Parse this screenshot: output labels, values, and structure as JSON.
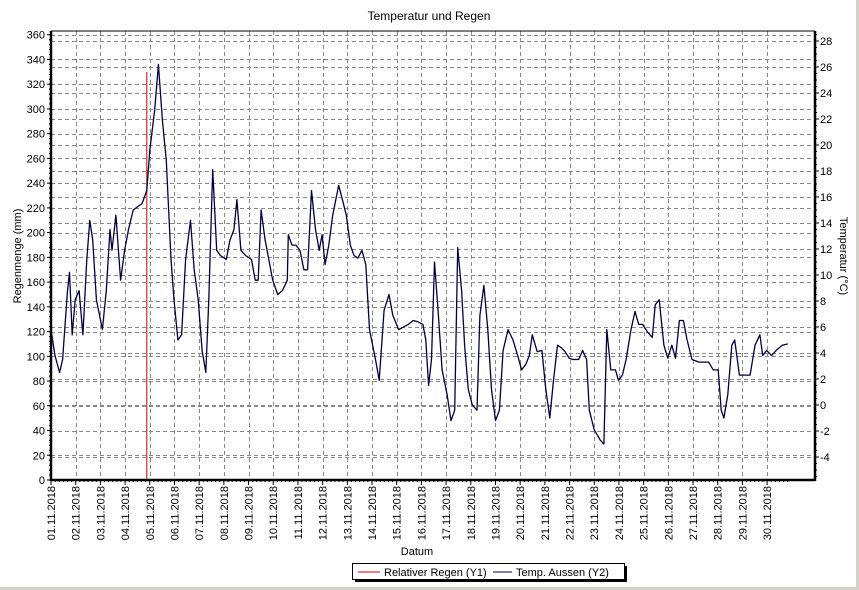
{
  "chart_data": {
    "type": "line",
    "title": "Temperatur und Regen",
    "xlabel": "Datum",
    "ylabel": "Regenmenge (mm)",
    "y2label": "Temperatur (°C)",
    "x_unit": "days since 01.11.2018 00:00",
    "xlim": [
      0,
      30.94
    ],
    "ylim": [
      0,
      363
    ],
    "y2lim": [
      -5.77,
      28.77
    ],
    "grid": true,
    "legend_position": "bottom-center",
    "x_tick_labels": [
      "01.11.2018",
      "02.11.2018",
      "03.11.2018",
      "04.11.2018",
      "05.11.2018",
      "06.11.2018",
      "07.11.2018",
      "08.11.2018",
      "09.11.2018",
      "10.11.2018",
      "11.11.2018",
      "12.11.2018",
      "13.11.2018",
      "14.11.2018",
      "15.11.2018",
      "16.11.2018",
      "17.11.2018",
      "18.11.2018",
      "19.11.2018",
      "20.11.2018",
      "21.11.2018",
      "22.11.2018",
      "23.11.2018",
      "24.11.2018",
      "25.11.2018",
      "26.11.2018",
      "27.11.2018",
      "28.11.2018",
      "29.11.2018",
      "30.11.2018"
    ],
    "y_ticks": [
      0,
      20,
      40,
      60,
      80,
      100,
      120,
      140,
      160,
      180,
      200,
      220,
      240,
      260,
      280,
      300,
      320,
      340,
      360
    ],
    "y2_ticks": [
      -4,
      -2,
      0,
      2,
      4,
      6,
      8,
      10,
      12,
      14,
      16,
      18,
      20,
      22,
      24,
      26,
      28
    ],
    "series": [
      {
        "name": "Relativer Regen (Y1)",
        "axis": "y1",
        "color": "#cc0000",
        "style": "impulse",
        "points": [
          [
            3.88,
            330
          ]
        ]
      },
      {
        "name": "Temp. Aussen (Y2)",
        "axis": "y2",
        "color": "#000040",
        "style": "line",
        "points": [
          [
            0,
            5.8
          ],
          [
            0.16,
            3.8
          ],
          [
            0.35,
            2.5
          ],
          [
            0.47,
            3.5
          ],
          [
            0.67,
            8.8
          ],
          [
            0.75,
            10.2
          ],
          [
            0.86,
            5.4
          ],
          [
            0.98,
            8.1
          ],
          [
            1.14,
            8.8
          ],
          [
            1.29,
            5.4
          ],
          [
            1.45,
            11.2
          ],
          [
            1.57,
            14.2
          ],
          [
            1.69,
            12.7
          ],
          [
            1.84,
            8.1
          ],
          [
            2.08,
            5.8
          ],
          [
            2.24,
            8.8
          ],
          [
            2.39,
            13.5
          ],
          [
            2.47,
            11.9
          ],
          [
            2.63,
            14.6
          ],
          [
            2.82,
            9.6
          ],
          [
            2.98,
            11.9
          ],
          [
            3.14,
            13.5
          ],
          [
            3.33,
            15.0
          ],
          [
            3.69,
            15.5
          ],
          [
            3.88,
            16.5
          ],
          [
            4.0,
            19.6
          ],
          [
            4.2,
            22.7
          ],
          [
            4.35,
            26.2
          ],
          [
            4.51,
            21.9
          ],
          [
            4.67,
            18.8
          ],
          [
            4.86,
            11.2
          ],
          [
            4.98,
            8.1
          ],
          [
            5.14,
            5.0
          ],
          [
            5.29,
            5.4
          ],
          [
            5.45,
            11.2
          ],
          [
            5.65,
            14.2
          ],
          [
            5.8,
            10.4
          ],
          [
            5.96,
            8.1
          ],
          [
            6.12,
            4.2
          ],
          [
            6.27,
            2.5
          ],
          [
            6.39,
            8.1
          ],
          [
            6.55,
            18.1
          ],
          [
            6.71,
            11.9
          ],
          [
            6.86,
            11.5
          ],
          [
            7.1,
            11.2
          ],
          [
            7.25,
            12.7
          ],
          [
            7.41,
            13.5
          ],
          [
            7.53,
            15.8
          ],
          [
            7.69,
            11.9
          ],
          [
            7.88,
            11.5
          ],
          [
            8.12,
            11.2
          ],
          [
            8.27,
            9.6
          ],
          [
            8.39,
            9.6
          ],
          [
            8.51,
            15.0
          ],
          [
            8.67,
            12.7
          ],
          [
            8.82,
            11.2
          ],
          [
            8.98,
            9.6
          ],
          [
            9.18,
            8.5
          ],
          [
            9.37,
            8.8
          ],
          [
            9.57,
            9.6
          ],
          [
            9.61,
            13.1
          ],
          [
            9.76,
            12.3
          ],
          [
            9.92,
            12.3
          ],
          [
            10.08,
            11.9
          ],
          [
            10.24,
            10.4
          ],
          [
            10.39,
            10.4
          ],
          [
            10.55,
            16.5
          ],
          [
            10.71,
            13.5
          ],
          [
            10.86,
            11.9
          ],
          [
            10.98,
            13.1
          ],
          [
            11.1,
            10.8
          ],
          [
            11.25,
            12.3
          ],
          [
            11.41,
            14.6
          ],
          [
            11.65,
            16.9
          ],
          [
            11.8,
            15.8
          ],
          [
            11.96,
            14.6
          ],
          [
            12.12,
            12.3
          ],
          [
            12.27,
            11.5
          ],
          [
            12.43,
            11.3
          ],
          [
            12.59,
            11.9
          ],
          [
            12.75,
            10.8
          ],
          [
            12.9,
            5.8
          ],
          [
            13.14,
            3.5
          ],
          [
            13.29,
            1.9
          ],
          [
            13.49,
            7.3
          ],
          [
            13.69,
            8.5
          ],
          [
            13.84,
            6.9
          ],
          [
            14.08,
            5.8
          ],
          [
            14.47,
            6.2
          ],
          [
            14.67,
            6.5
          ],
          [
            14.86,
            6.4
          ],
          [
            15.06,
            6.2
          ],
          [
            15.18,
            5.0
          ],
          [
            15.29,
            1.5
          ],
          [
            15.41,
            3.5
          ],
          [
            15.53,
            11.0
          ],
          [
            15.69,
            6.9
          ],
          [
            15.84,
            2.7
          ],
          [
            16.04,
            0.8
          ],
          [
            16.2,
            -1.2
          ],
          [
            16.35,
            -0.4
          ],
          [
            16.47,
            12.1
          ],
          [
            16.63,
            8.8
          ],
          [
            16.75,
            4.6
          ],
          [
            16.9,
            1.2
          ],
          [
            17.06,
            0.0
          ],
          [
            17.25,
            -0.4
          ],
          [
            17.37,
            6.9
          ],
          [
            17.53,
            9.2
          ],
          [
            17.69,
            5.8
          ],
          [
            17.84,
            1.2
          ],
          [
            18.0,
            -1.2
          ],
          [
            18.16,
            -0.4
          ],
          [
            18.31,
            4.2
          ],
          [
            18.51,
            5.8
          ],
          [
            18.71,
            5.0
          ],
          [
            18.9,
            3.8
          ],
          [
            19.06,
            2.7
          ],
          [
            19.22,
            3.1
          ],
          [
            19.37,
            3.8
          ],
          [
            19.49,
            5.4
          ],
          [
            19.69,
            4.1
          ],
          [
            19.88,
            4.2
          ],
          [
            20.04,
            1.2
          ],
          [
            20.2,
            -1.0
          ],
          [
            20.35,
            1.9
          ],
          [
            20.51,
            4.6
          ],
          [
            20.67,
            4.4
          ],
          [
            20.82,
            4.1
          ],
          [
            20.98,
            3.6
          ],
          [
            21.14,
            3.5
          ],
          [
            21.37,
            3.5
          ],
          [
            21.53,
            4.2
          ],
          [
            21.69,
            3.5
          ],
          [
            21.8,
            -0.4
          ],
          [
            22.0,
            -1.9
          ],
          [
            22.24,
            -2.7
          ],
          [
            22.39,
            -3.0
          ],
          [
            22.51,
            5.8
          ],
          [
            22.67,
            2.7
          ],
          [
            22.86,
            2.7
          ],
          [
            22.98,
            1.9
          ],
          [
            23.14,
            2.3
          ],
          [
            23.29,
            3.5
          ],
          [
            23.49,
            5.8
          ],
          [
            23.65,
            7.2
          ],
          [
            23.8,
            6.2
          ],
          [
            23.96,
            6.2
          ],
          [
            24.16,
            5.6
          ],
          [
            24.35,
            5.2
          ],
          [
            24.47,
            7.7
          ],
          [
            24.63,
            8.1
          ],
          [
            24.82,
            4.6
          ],
          [
            24.98,
            3.6
          ],
          [
            25.14,
            4.6
          ],
          [
            25.29,
            3.6
          ],
          [
            25.45,
            6.5
          ],
          [
            25.61,
            6.5
          ],
          [
            25.76,
            5.0
          ],
          [
            25.96,
            3.5
          ],
          [
            26.24,
            3.3
          ],
          [
            26.63,
            3.3
          ],
          [
            26.82,
            2.7
          ],
          [
            27.02,
            2.7
          ],
          [
            27.14,
            -0.4
          ],
          [
            27.25,
            -1.0
          ],
          [
            27.41,
            0.8
          ],
          [
            27.57,
            4.6
          ],
          [
            27.69,
            5.0
          ],
          [
            27.88,
            2.3
          ],
          [
            28.08,
            2.3
          ],
          [
            28.31,
            2.3
          ],
          [
            28.51,
            4.6
          ],
          [
            28.71,
            5.4
          ],
          [
            28.82,
            3.8
          ],
          [
            28.98,
            4.2
          ],
          [
            29.18,
            3.8
          ],
          [
            29.37,
            4.2
          ],
          [
            29.61,
            4.6
          ],
          [
            29.84,
            4.7
          ]
        ]
      }
    ]
  },
  "legend": {
    "items": [
      "Relativer Regen (Y1)",
      "Temp. Aussen (Y2)"
    ]
  }
}
